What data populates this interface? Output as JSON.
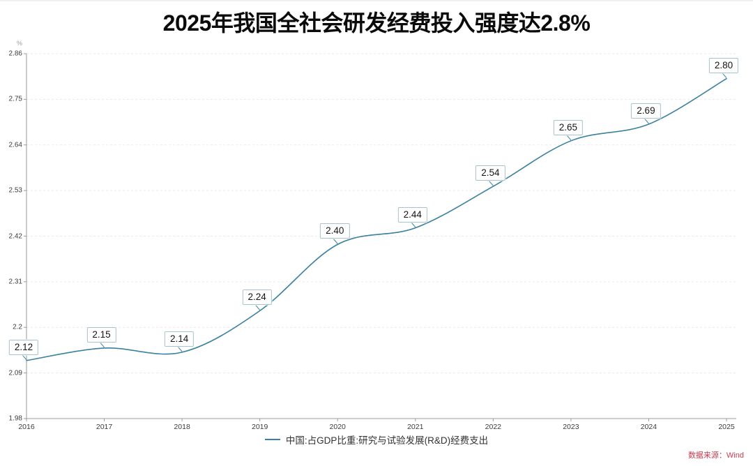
{
  "page": {
    "title": "2025年我国全社会研发经费投入强度达2.8%",
    "source": "数据来源：Wind"
  },
  "legend": {
    "label": "中国:占GDP比重:研究与试验发展(R&D)经费支出"
  },
  "chart_data": {
    "type": "line",
    "title": "2025年我国全社会研发经费投入强度达2.8%",
    "unit_label": "%",
    "x": [
      2016,
      2017,
      2018,
      2019,
      2020,
      2021,
      2022,
      2023,
      2024,
      2025
    ],
    "series": [
      {
        "name": "中国:占GDP比重:研究与试验发展(R&D)经费支出",
        "values": [
          2.12,
          2.15,
          2.14,
          2.24,
          2.4,
          2.44,
          2.54,
          2.65,
          2.69,
          2.8
        ]
      }
    ],
    "point_labels": [
      "2.12",
      "2.15",
      "2.14",
      "2.24",
      "2.40",
      "2.44",
      "2.54",
      "2.65",
      "2.69",
      "2.80"
    ],
    "x_tick_labels": [
      "2016",
      "2017",
      "2018",
      "2019",
      "2020",
      "2021",
      "2022",
      "2023",
      "2024",
      "2025"
    ],
    "y_ticks": [
      2.86,
      2.75,
      2.64,
      2.53,
      2.42,
      2.31,
      2.2,
      2.09,
      1.98
    ],
    "y_tick_labels": [
      "2.86",
      "2.75",
      "2.64",
      "2.53",
      "2.42",
      "2.31",
      "2.2",
      "2.09",
      "1.98"
    ],
    "ylim": [
      1.98,
      2.86
    ],
    "grid": "horizontal-dashed",
    "legend_position": "bottom-center"
  },
  "colors": {
    "line": "#3a80a0",
    "label_border": "#a8c3cd",
    "grid": "#eaeaea",
    "axis": "#9a9a9a",
    "tick_text": "#3c3c3c",
    "title_text": "#0b0b0b",
    "source_text": "#c73a4e"
  }
}
